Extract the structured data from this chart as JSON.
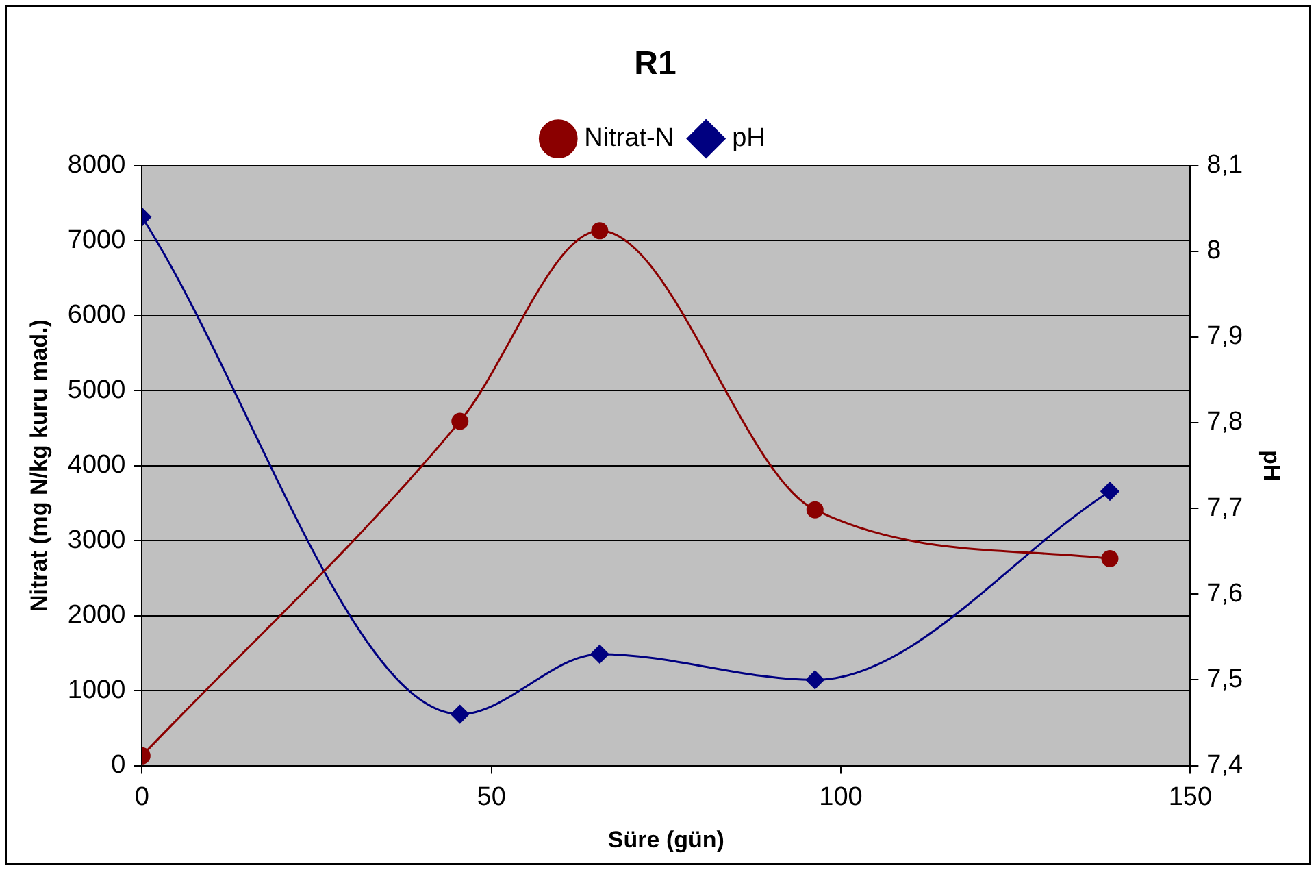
{
  "chart_data": {
    "type": "line",
    "title": "R1",
    "xlabel": "Süre (gün)",
    "ylabel": "Nitrat (mg N/kg kuru mad.)",
    "y2label": "pH",
    "x": [
      0,
      45.5,
      65.5,
      96.3,
      138.5
    ],
    "series": [
      {
        "name": "Nitrat-N",
        "color": "#8b0000",
        "marker": "circle",
        "values": [
          130,
          4590,
          7130,
          3410,
          2760
        ]
      },
      {
        "name": "pH",
        "color": "#000080",
        "marker": "diamond",
        "axis": "y2",
        "values": [
          8.04,
          7.46,
          7.53,
          7.5,
          7.72
        ]
      }
    ],
    "xlim": [
      0,
      150
    ],
    "xticks": [
      0,
      50,
      100,
      150
    ],
    "ylim": [
      0,
      8000
    ],
    "yticks": [
      0,
      1000,
      2000,
      3000,
      4000,
      5000,
      6000,
      7000,
      8000
    ],
    "y2lim": [
      7.4,
      8.1
    ],
    "y2ticks": [
      {
        "value": 7.4,
        "label": "7,4"
      },
      {
        "value": 7.5,
        "label": "7,5"
      },
      {
        "value": 7.6,
        "label": "7,6"
      },
      {
        "value": 7.7,
        "label": "7,7"
      },
      {
        "value": 7.8,
        "label": "7,8"
      },
      {
        "value": 7.9,
        "label": "7,9"
      },
      {
        "value": 8,
        "label": "8"
      },
      {
        "value": 8.1,
        "label": "8,1"
      }
    ],
    "grid": "y",
    "legend": "top"
  }
}
